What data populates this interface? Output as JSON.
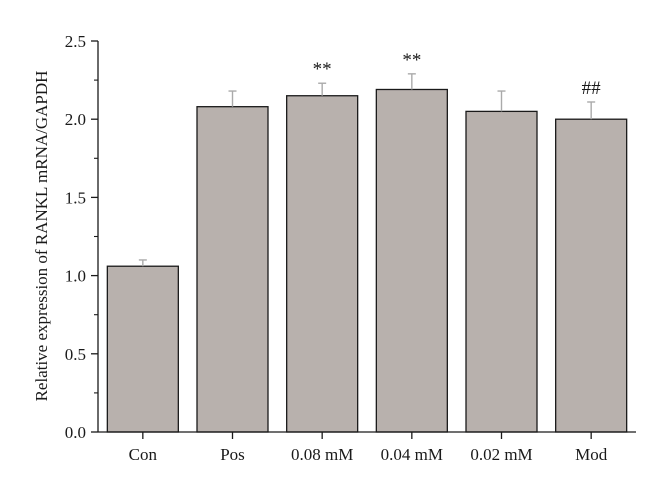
{
  "chart_data": {
    "type": "bar",
    "categories": [
      "Con",
      "Pos",
      "0.08 mM",
      "0.04 mM",
      "0.02 mM",
      "Mod"
    ],
    "values": [
      1.06,
      2.08,
      2.15,
      2.19,
      2.05,
      2.0
    ],
    "errors": [
      0.04,
      0.1,
      0.08,
      0.1,
      0.13,
      0.11
    ],
    "annotations": [
      "",
      "",
      "**",
      "**",
      "",
      "##"
    ],
    "ylabel": "Relative expression of RANKL mRNA/GAPDH",
    "xlabel": "",
    "title": "",
    "ylim": [
      0.0,
      2.5
    ],
    "yticks": [
      "0.0",
      "0.5",
      "1.0",
      "1.5",
      "2.0",
      "2.5"
    ],
    "bar_color": "#b8b1ad",
    "bar_edge_color": "#1a1a1a",
    "error_bar_color": "#aaaaaa",
    "grid": false,
    "legend": "none"
  }
}
